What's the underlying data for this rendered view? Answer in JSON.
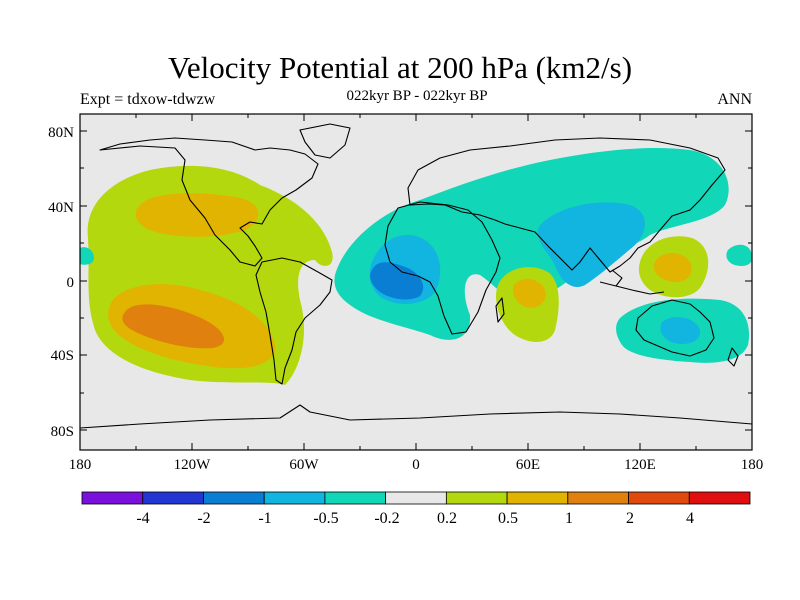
{
  "figure": {
    "title": "Velocity Potential at 200 hPa (km2/s)",
    "subtitle": "022kyr BP - 022kyr BP",
    "left_label": "Expt = tdxow-tdwzw",
    "right_label": "ANN"
  },
  "map": {
    "background_color": "#e8e8e8",
    "lat_ticks": [
      "80N",
      "40N",
      "0",
      "40S",
      "80S"
    ],
    "lon_ticks": [
      "180",
      "120W",
      "60W",
      "0",
      "60E",
      "120E",
      "180"
    ]
  },
  "colorbar": {
    "colors": [
      "#7a10dc",
      "#2236d2",
      "#0a7ed2",
      "#12b4e0",
      "#12d6b8",
      "#e8e8e8",
      "#b4d80e",
      "#e0b400",
      "#e0800e",
      "#e04a0e",
      "#e00e0e"
    ],
    "labels": [
      "-4",
      "-2",
      "-1",
      "-0.5",
      "-0.2",
      "0.2",
      "0.5",
      "1",
      "2",
      "4"
    ]
  }
}
